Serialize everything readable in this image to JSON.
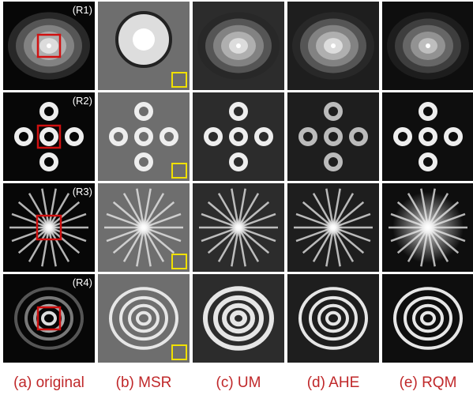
{
  "rows": [
    {
      "label": "(R1)"
    },
    {
      "label": "(R2)"
    },
    {
      "label": "(R3)"
    },
    {
      "label": "(R4)"
    }
  ],
  "columns": [
    {
      "caption": "(a) original"
    },
    {
      "caption": "(b) MSR"
    },
    {
      "caption": "(c) UM"
    },
    {
      "caption": "(d) AHE"
    },
    {
      "caption": "(e) RQM"
    }
  ]
}
